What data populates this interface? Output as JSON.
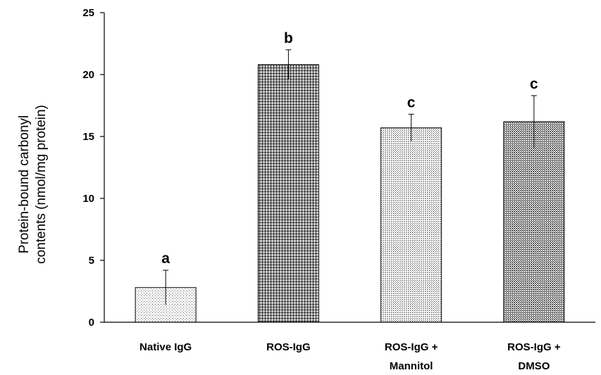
{
  "chart_data": {
    "type": "bar",
    "title": "",
    "xlabel": "",
    "ylabel_lines": [
      "Protein-bound carbonyl",
      "contents (nmol/mg protein)"
    ],
    "ylim": [
      0,
      25
    ],
    "yticks": [
      0,
      5,
      10,
      15,
      20,
      25
    ],
    "grid": false,
    "legend": "none",
    "categories": [
      [
        "Native IgG"
      ],
      [
        "ROS-IgG"
      ],
      [
        "ROS-IgG +",
        "Mannitol"
      ],
      [
        "ROS-IgG +",
        "DMSO"
      ]
    ],
    "values": [
      2.8,
      20.8,
      15.7,
      16.2
    ],
    "errors": [
      1.4,
      1.2,
      1.1,
      2.1
    ],
    "significance_labels": [
      "a",
      "b",
      "c",
      "c"
    ],
    "bar_patterns": [
      "light-dots",
      "dense-cross",
      "medium-dots",
      "dense-dots"
    ]
  }
}
